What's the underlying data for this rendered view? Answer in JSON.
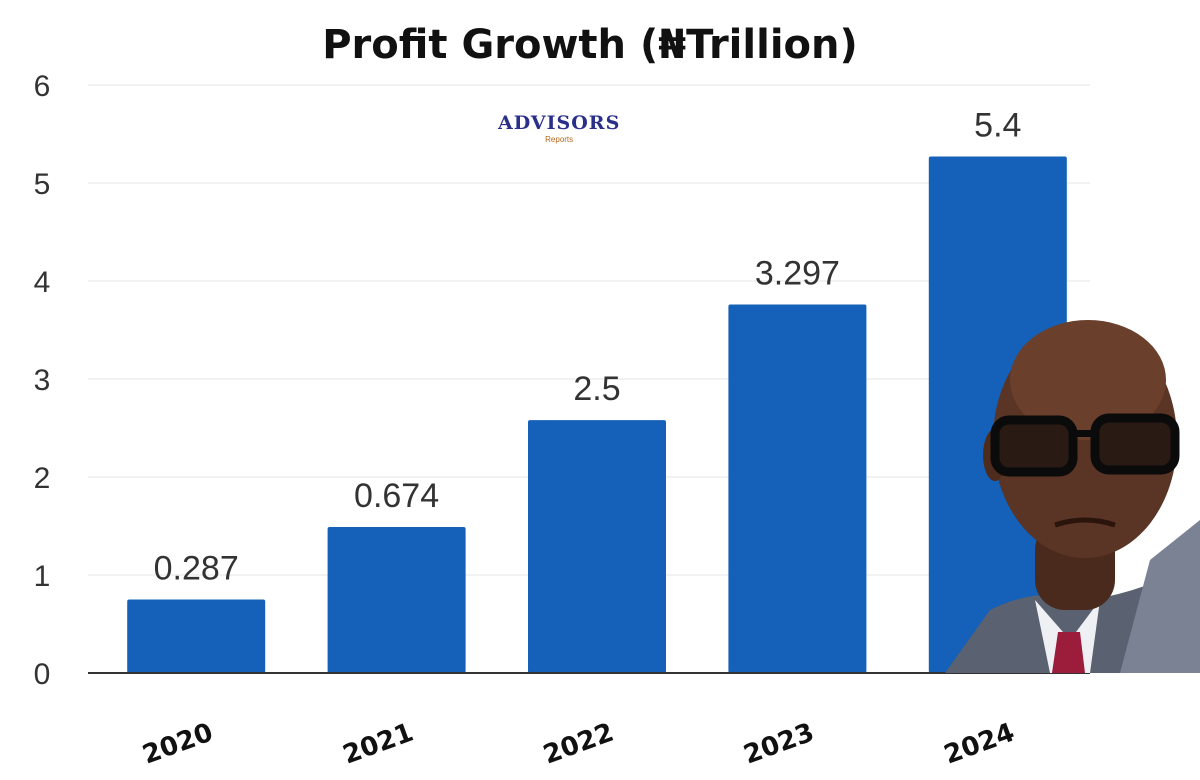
{
  "chart_data": {
    "type": "bar",
    "title": "Profit Growth (₦Trillion)",
    "xlabel": "",
    "ylabel": "",
    "categories": [
      "2020",
      "2021",
      "2022",
      "2023",
      "2024"
    ],
    "values": [
      0.287,
      0.674,
      2.5,
      3.297,
      5.4
    ],
    "data_labels": [
      "0.287",
      "0.674",
      "2.5",
      "3.297",
      "5.4"
    ],
    "bar_heights": [
      0.75,
      1.49,
      2.58,
      3.76,
      5.27
    ],
    "ylim": [
      0,
      6
    ],
    "yticks": [
      0,
      1,
      2,
      3,
      4,
      5,
      6
    ],
    "grid": true,
    "bar_color": "#1560b8"
  },
  "watermark": {
    "main": "ADVISORS",
    "sub": "Reports"
  }
}
